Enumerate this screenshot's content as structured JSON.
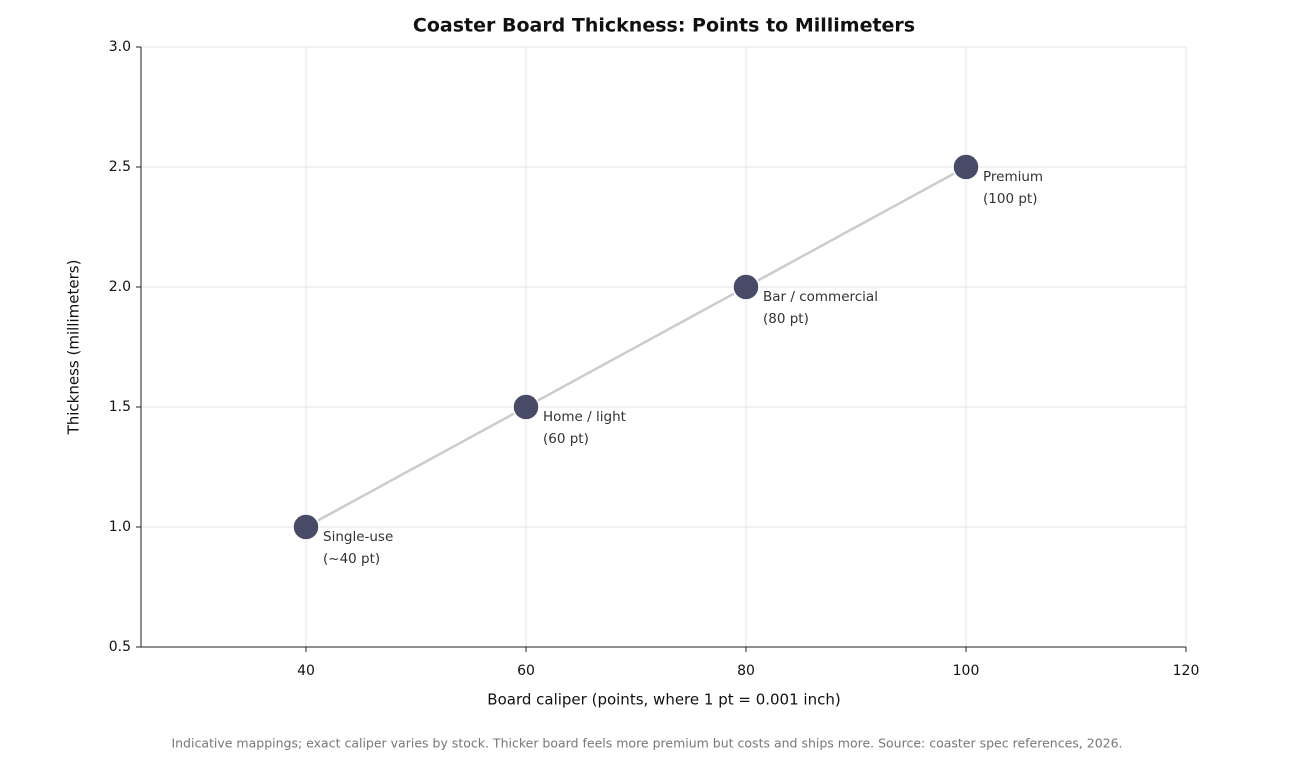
{
  "chart_data": {
    "type": "line",
    "title": "Coaster Board Thickness: Points to Millimeters",
    "x_label": "Board caliper (points, where 1 pt = 0.001 inch)",
    "y_label": "Thickness (millimeters)",
    "footnote": "Indicative mappings; exact caliper varies by stock. Thicker board feels more premium but costs and ships more. Source: coaster spec references, 2026.",
    "x": [
      40,
      60,
      80,
      100
    ],
    "values": [
      1.0,
      1.5,
      2.0,
      2.5
    ],
    "point_labels": [
      [
        "Single-use",
        "(~40 pt)"
      ],
      [
        "Home / light",
        "(60 pt)"
      ],
      [
        "Bar / commercial",
        "(80 pt)"
      ],
      [
        "Premium",
        "(100 pt)"
      ]
    ],
    "color": "#474b68",
    "line_color": "#cccccc",
    "xlim": [
      25,
      120
    ],
    "xticks": [
      40,
      60,
      80,
      100,
      120
    ],
    "ylim": [
      0.5,
      3.0
    ],
    "yticks": [
      0.5,
      {
        "value": 1,
        "label": "1.0"
      },
      1.5,
      {
        "value": 2,
        "label": "2.0"
      },
      2.5,
      {
        "value": 3,
        "label": "3.0"
      }
    ],
    "grid": true
  }
}
